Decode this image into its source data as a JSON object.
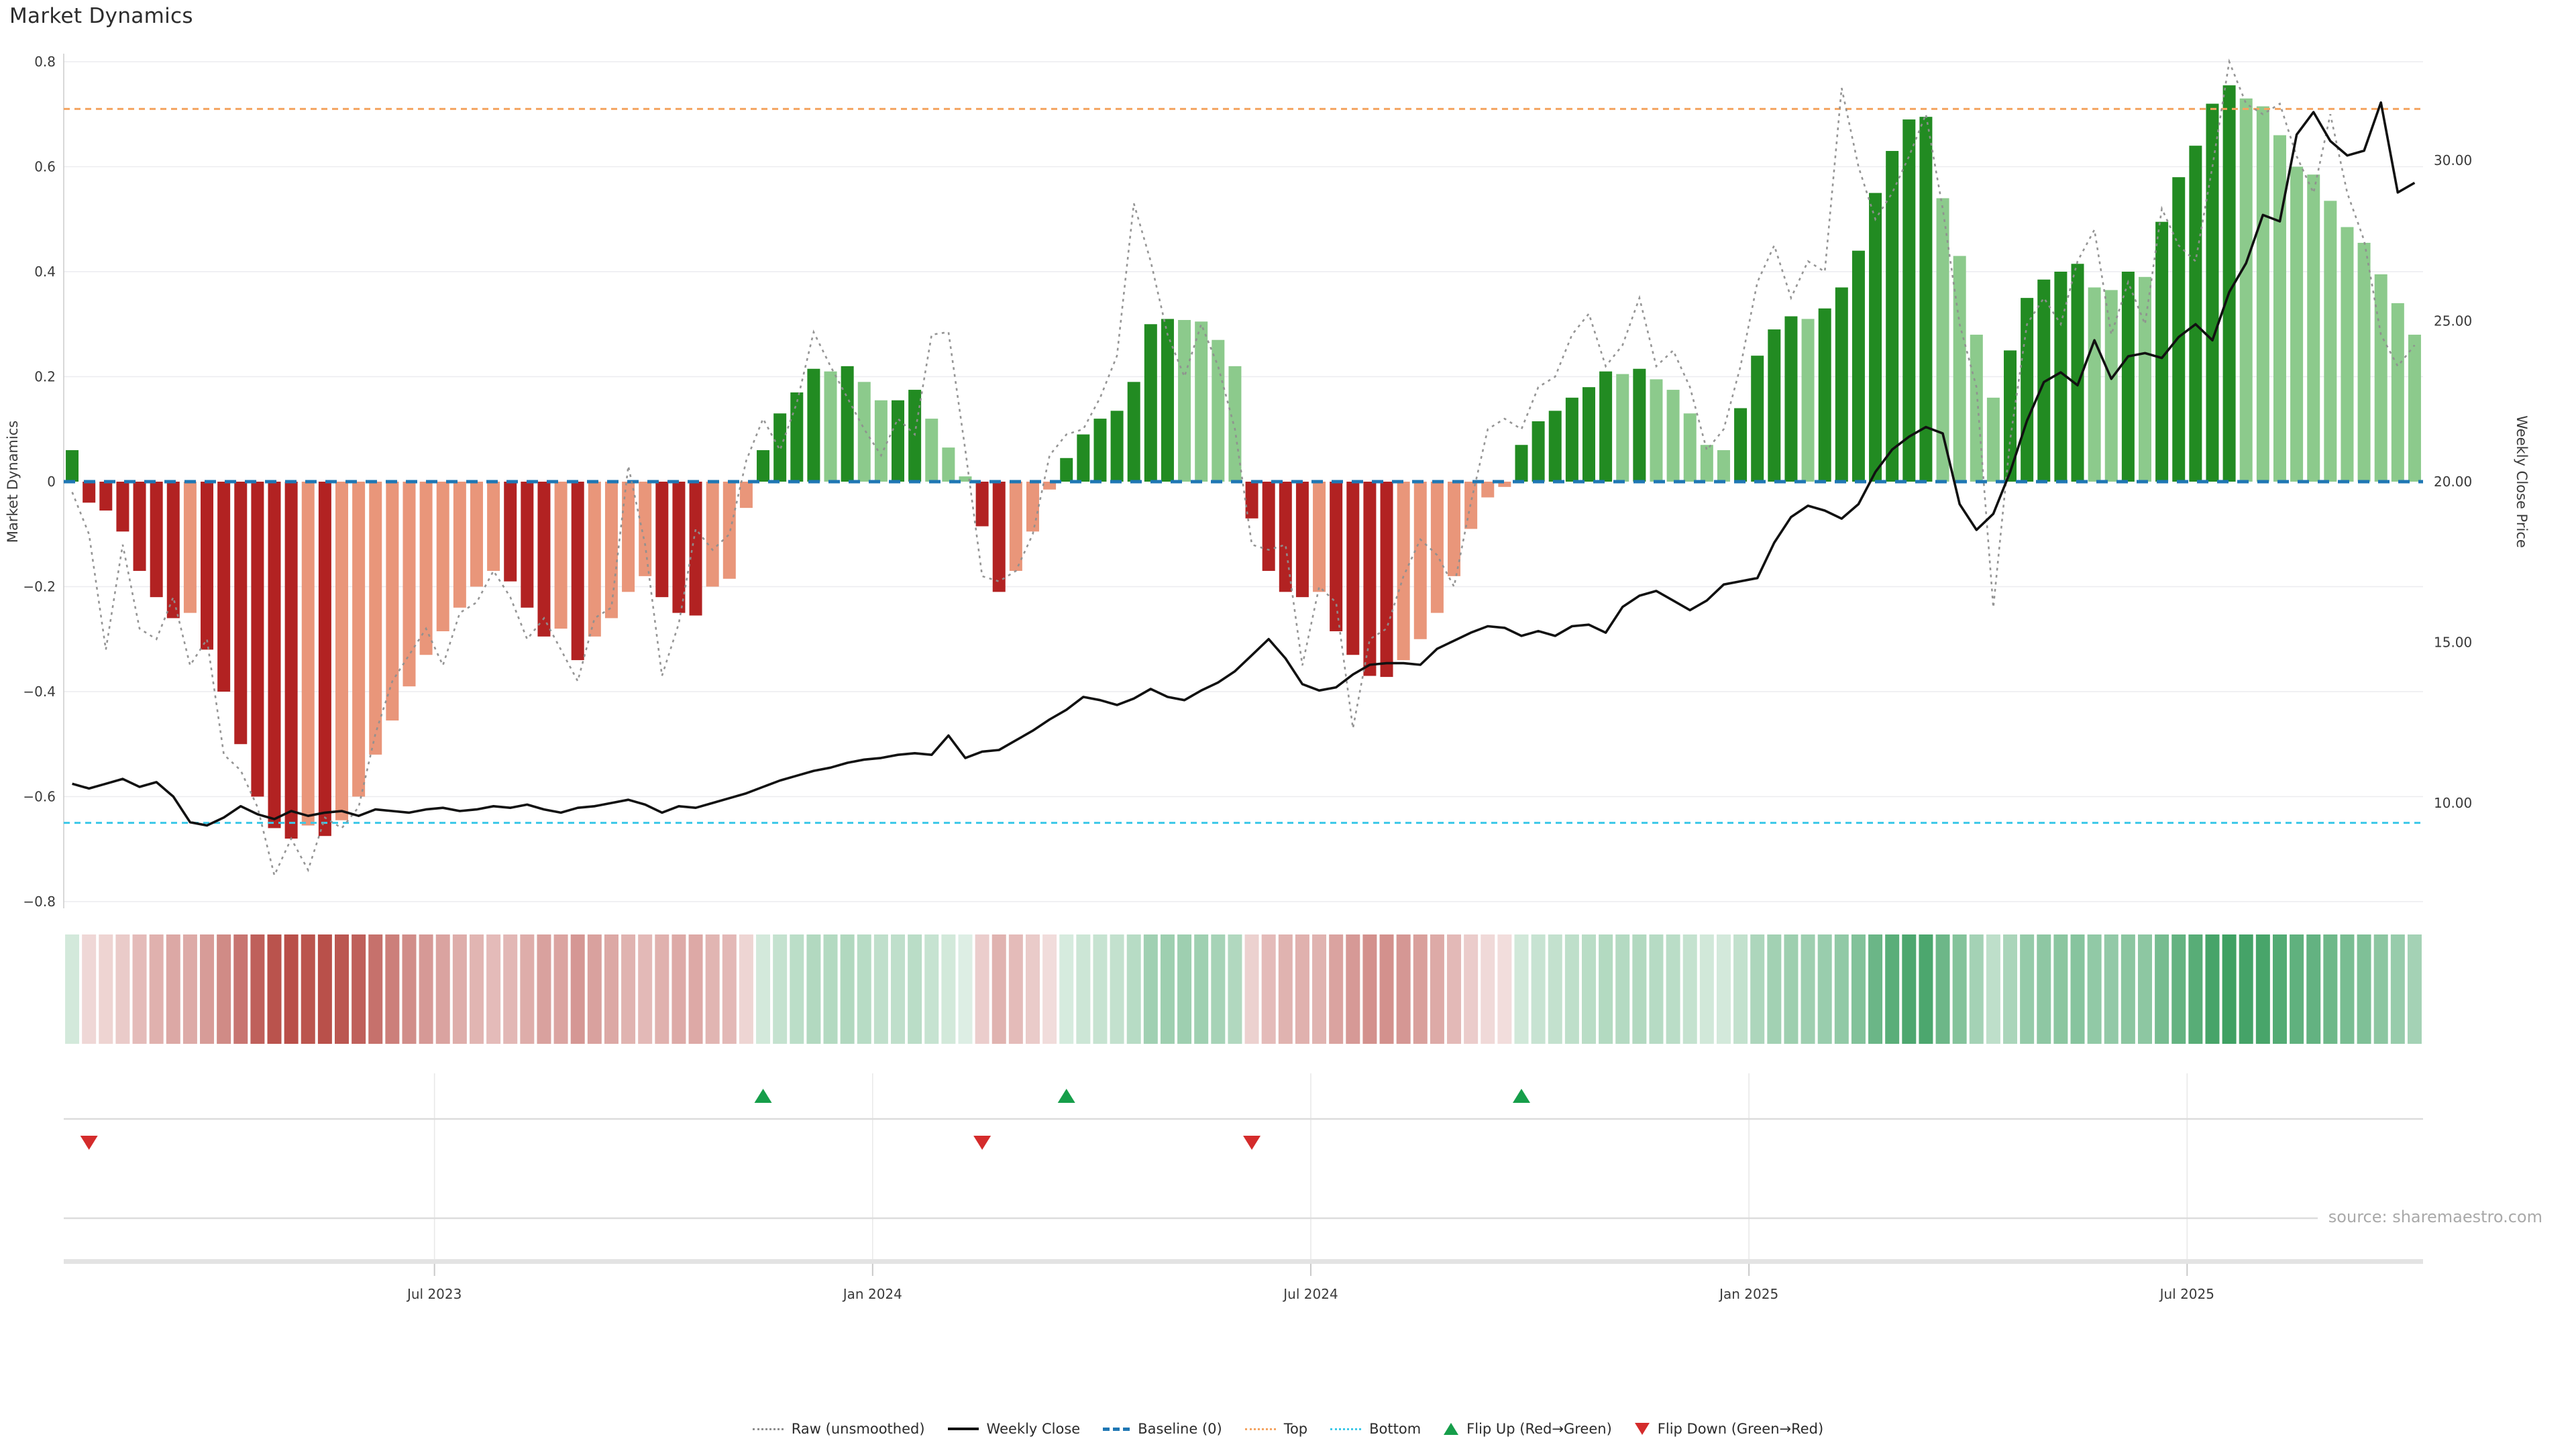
{
  "title": "Market Dynamics",
  "source": {
    "text": "source: sharemaestro.com"
  },
  "legend": {
    "items": [
      {
        "label": "Raw (unsmoothed)"
      },
      {
        "label": "Weekly Close"
      },
      {
        "label": "Baseline (0)"
      },
      {
        "label": "Top"
      },
      {
        "label": "Bottom"
      },
      {
        "label": "Flip Up (Red→Green)"
      },
      {
        "label": "Flip Down (Green→Red)"
      }
    ]
  },
  "chart_data": {
    "type": "bar+line",
    "title": "Market Dynamics",
    "frequency": "weekly",
    "left_axis": {
      "label": "Market Dynamics",
      "range": [
        -0.8,
        0.8
      ],
      "ticks": [
        {
          "label": "0.8",
          "value": 0.8
        },
        {
          "label": "0.6",
          "value": 0.6
        },
        {
          "label": "0.4",
          "value": 0.4
        },
        {
          "label": "0.2",
          "value": 0.2
        },
        {
          "label": "0",
          "value": 0.0
        },
        {
          "label": "−0.2",
          "value": -0.2
        },
        {
          "label": "−0.4",
          "value": -0.4
        },
        {
          "label": "−0.6",
          "value": -0.6
        },
        {
          "label": "−0.8",
          "value": -0.8
        }
      ]
    },
    "right_axis": {
      "label": "Weekly Close Price",
      "ticks": [
        {
          "label": "30.00",
          "value": 30
        },
        {
          "label": "25.00",
          "value": 25
        },
        {
          "label": "20.00",
          "value": 20
        },
        {
          "label": "15.00",
          "value": 15
        },
        {
          "label": "10.00",
          "value": 10
        }
      ]
    },
    "x_axis": {
      "ticks": [
        {
          "label": "Jul 2023",
          "week_index": 21.5
        },
        {
          "label": "Jan 2024",
          "week_index": 47.5
        },
        {
          "label": "Jul 2024",
          "week_index": 73.5
        },
        {
          "label": "Jan 2025",
          "week_index": 99.5
        },
        {
          "label": "Jul 2025",
          "week_index": 125.5
        }
      ]
    },
    "baseline": 0,
    "top_threshold": 0.71,
    "bottom_threshold": -0.65,
    "series": [
      {
        "name": "Market Dynamics",
        "kind": "bar",
        "values": [
          0.06,
          -0.04,
          -0.055,
          -0.095,
          -0.17,
          -0.22,
          -0.26,
          -0.25,
          -0.32,
          -0.4,
          -0.5,
          -0.6,
          -0.66,
          -0.68,
          -0.655,
          -0.675,
          -0.645,
          -0.6,
          -0.52,
          -0.455,
          -0.39,
          -0.33,
          -0.285,
          -0.24,
          -0.2,
          -0.17,
          -0.19,
          -0.24,
          -0.295,
          -0.28,
          -0.34,
          -0.295,
          -0.26,
          -0.21,
          -0.18,
          -0.22,
          -0.25,
          -0.255,
          -0.2,
          -0.185,
          -0.05,
          0.06,
          0.13,
          0.17,
          0.215,
          0.21,
          0.22,
          0.19,
          0.155,
          0.155,
          0.175,
          0.12,
          0.065,
          0.01,
          -0.085,
          -0.21,
          -0.17,
          -0.095,
          -0.015,
          0.045,
          0.09,
          0.12,
          0.135,
          0.19,
          0.3,
          0.31,
          0.308,
          0.305,
          0.27,
          0.22,
          -0.07,
          -0.17,
          -0.21,
          -0.22,
          -0.21,
          -0.285,
          -0.33,
          -0.37,
          -0.372,
          -0.34,
          -0.3,
          -0.25,
          -0.18,
          -0.09,
          -0.03,
          -0.01,
          0.07,
          0.115,
          0.135,
          0.16,
          0.18,
          0.21,
          0.205,
          0.215,
          0.195,
          0.175,
          0.13,
          0.07,
          0.06,
          0.14,
          0.24,
          0.29,
          0.315,
          0.31,
          0.33,
          0.37,
          0.44,
          0.55,
          0.63,
          0.69,
          0.695,
          0.54,
          0.43,
          0.28,
          0.16,
          0.25,
          0.35,
          0.385,
          0.4,
          0.415,
          0.37,
          0.365,
          0.4,
          0.39,
          0.495,
          0.58,
          0.64,
          0.72,
          0.755,
          0.73,
          0.715,
          0.66,
          0.6,
          0.585,
          0.535,
          0.485,
          0.455,
          0.395,
          0.34,
          0.28
        ]
      },
      {
        "name": "Raw (unsmoothed)",
        "kind": "line-dotted",
        "values": [
          -0.02,
          -0.1,
          -0.32,
          -0.12,
          -0.28,
          -0.3,
          -0.22,
          -0.35,
          -0.3,
          -0.52,
          -0.55,
          -0.62,
          -0.75,
          -0.68,
          -0.74,
          -0.64,
          -0.66,
          -0.62,
          -0.48,
          -0.38,
          -0.33,
          -0.28,
          -0.35,
          -0.25,
          -0.23,
          -0.17,
          -0.22,
          -0.3,
          -0.26,
          -0.32,
          -0.38,
          -0.26,
          -0.24,
          0.03,
          -0.12,
          -0.37,
          -0.27,
          -0.09,
          -0.13,
          -0.1,
          0.04,
          0.12,
          0.06,
          0.15,
          0.285,
          0.22,
          0.16,
          0.1,
          0.05,
          0.12,
          0.09,
          0.28,
          0.285,
          0.06,
          -0.18,
          -0.19,
          -0.17,
          -0.1,
          0.05,
          0.09,
          0.1,
          0.16,
          0.24,
          0.53,
          0.42,
          0.28,
          0.2,
          0.3,
          0.22,
          0.1,
          -0.12,
          -0.13,
          -0.12,
          -0.35,
          -0.2,
          -0.23,
          -0.47,
          -0.3,
          -0.28,
          -0.18,
          -0.11,
          -0.14,
          -0.2,
          -0.04,
          0.1,
          0.12,
          0.1,
          0.18,
          0.2,
          0.28,
          0.32,
          0.22,
          0.26,
          0.35,
          0.22,
          0.25,
          0.18,
          0.06,
          0.1,
          0.22,
          0.38,
          0.45,
          0.35,
          0.42,
          0.4,
          0.75,
          0.6,
          0.5,
          0.55,
          0.62,
          0.7,
          0.52,
          0.3,
          0.18,
          -0.24,
          0.08,
          0.3,
          0.35,
          0.3,
          0.42,
          0.48,
          0.28,
          0.38,
          0.3,
          0.52,
          0.45,
          0.42,
          0.6,
          0.8,
          0.72,
          0.7,
          0.72,
          0.62,
          0.55,
          0.7,
          0.55,
          0.46,
          0.28,
          0.22,
          0.26
        ]
      },
      {
        "name": "Weekly Close",
        "kind": "line",
        "values": [
          10.6,
          10.45,
          10.6,
          10.75,
          10.5,
          10.65,
          10.2,
          9.4,
          9.3,
          9.55,
          9.9,
          9.65,
          9.5,
          9.75,
          9.6,
          9.7,
          9.75,
          9.6,
          9.8,
          9.75,
          9.7,
          9.8,
          9.85,
          9.75,
          9.8,
          9.9,
          9.85,
          9.95,
          9.8,
          9.7,
          9.85,
          9.9,
          10.0,
          10.1,
          9.95,
          9.7,
          9.9,
          9.85,
          10.0,
          10.15,
          10.3,
          10.5,
          10.7,
          10.85,
          11.0,
          11.1,
          11.25,
          11.35,
          11.4,
          11.5,
          11.55,
          11.5,
          12.1,
          11.4,
          11.6,
          11.65,
          11.95,
          12.25,
          12.6,
          12.9,
          13.3,
          13.2,
          13.05,
          13.25,
          13.55,
          13.3,
          13.2,
          13.5,
          13.75,
          14.1,
          14.6,
          15.1,
          14.5,
          13.7,
          13.5,
          13.6,
          14.0,
          14.3,
          14.35,
          14.35,
          14.3,
          14.8,
          15.05,
          15.3,
          15.5,
          15.45,
          15.2,
          15.35,
          15.2,
          15.5,
          15.55,
          15.3,
          16.1,
          16.45,
          16.6,
          16.3,
          16.0,
          16.3,
          16.8,
          16.9,
          17.0,
          18.1,
          18.9,
          19.25,
          19.1,
          18.85,
          19.3,
          20.3,
          21.0,
          21.4,
          21.7,
          21.5,
          19.3,
          18.5,
          19.0,
          20.3,
          21.9,
          23.1,
          23.4,
          23.0,
          24.4,
          23.2,
          23.9,
          24.0,
          23.85,
          24.5,
          24.9,
          24.4,
          25.9,
          26.8,
          28.3,
          28.1,
          30.8,
          31.5,
          30.6,
          30.15,
          30.3,
          31.8,
          29.0,
          29.3
        ]
      }
    ],
    "flip_up_weeks": [
      41,
      59,
      86
    ],
    "flip_down_weeks": [
      1,
      54,
      70
    ],
    "heatmap": {
      "description": "weekly red-green intensity strip mirroring bar values"
    },
    "grid": "horizontal only",
    "legend_position": "bottom center",
    "colors": {
      "bar_up_strong": "#228b22",
      "bar_up_weak": "#8cca8c",
      "bar_down_strong": "#b22222",
      "bar_down_weak": "#e9967a",
      "weekly_close": "#111111",
      "raw": "#8f8f8f",
      "baseline": "#1f77b4",
      "top": "#f4a460",
      "bottom": "#3bc8e8",
      "flip_up": "#169e4a",
      "flip_down": "#d42b2b",
      "grid_line": "#ececef",
      "panel_line": "#dcdcdc",
      "axis_text": "#3a3a3a",
      "spine": "#cfcfcf",
      "axis_band": "#e3e3e3",
      "heat_green": "#3a9e5f",
      "heat_red": "#b03a33",
      "title_text": "#2d2d2d",
      "source_text": "#a9a9a9"
    }
  }
}
